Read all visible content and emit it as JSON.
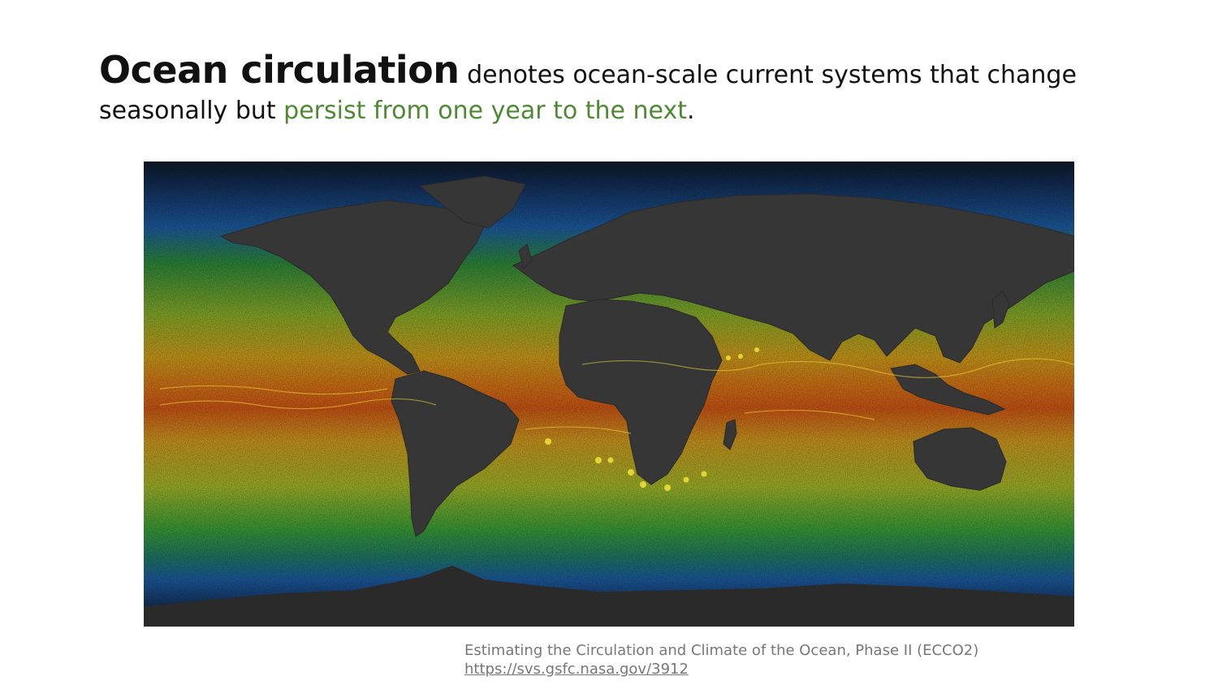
{
  "slide": {
    "heading": {
      "term": "Ocean circulation",
      "text_1": " denotes ocean-scale current systems that change seasonally but ",
      "highlight": "persist from one year to the next",
      "end": "."
    },
    "figure": {
      "subject": "global ocean surface current speed map (ECCO2 visualization)",
      "colors": {
        "land": "#363636",
        "polar_ice": "#262626",
        "deep_ocean": "#0f1a2a",
        "slow_current": "#1d5fa8",
        "moderate_current": "#3da63a",
        "fast_current": "#d8c21b",
        "fastest_current": "#e05a16"
      }
    },
    "caption": {
      "source": "Estimating the Circulation and Climate of the Ocean, Phase II (ECCO2)",
      "link": "https://svs.gsfc.nasa.gov/3912"
    }
  }
}
